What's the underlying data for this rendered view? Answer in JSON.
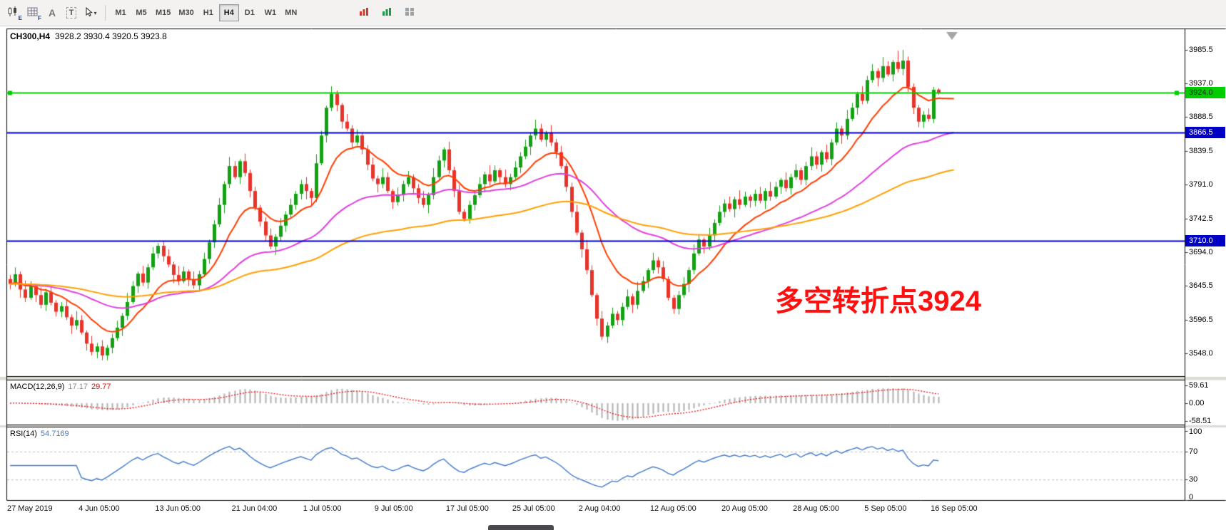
{
  "toolbar": {
    "icon_letters": {
      "e": "E",
      "f": "F",
      "a": "A",
      "t": "T"
    },
    "timeframes": [
      "M1",
      "M5",
      "M15",
      "M30",
      "H1",
      "H4",
      "D1",
      "W1",
      "MN"
    ],
    "active_timeframe": "H4"
  },
  "chart": {
    "symbol_period": "CH300,H4",
    "ohlc": "3928.2 3930.4 3920.5 3923.8"
  },
  "indicators": {
    "macd": {
      "label": "MACD(12,26,9)",
      "value_main": "17.17",
      "value_signal": "29.77",
      "scale_labels": [
        "59.61",
        "0.00",
        "-58.51"
      ],
      "scale_values": [
        59.61,
        0,
        -58.51
      ],
      "histogram_color": "#b6b6b6",
      "signal_color": "#ee1111"
    },
    "rsi": {
      "label": "RSI(14)",
      "value": "54.7169",
      "scale_labels": [
        "100",
        "70",
        "30",
        "0"
      ],
      "scale_values": [
        100,
        70,
        30,
        0
      ],
      "levels": [
        70,
        30
      ],
      "level_color": "#bdbdbd",
      "line_color": "#3f79c9"
    }
  },
  "annotation": {
    "text": "多空转折点3924",
    "color": "#fe1010"
  },
  "chart_data": {
    "type": "candlestick",
    "symbol": "CH300",
    "timeframe": "H4",
    "up_color": "#13a113",
    "down_color": "#e8332a",
    "candles": [
      [
        3655,
        3661,
        3640,
        3648
      ],
      [
        3648,
        3672,
        3644,
        3662
      ],
      [
        3662,
        3666,
        3628,
        3640
      ],
      [
        3640,
        3653,
        3622,
        3628
      ],
      [
        3628,
        3652,
        3625,
        3645
      ],
      [
        3645,
        3648,
        3622,
        3632
      ],
      [
        3632,
        3643,
        3613,
        3618
      ],
      [
        3618,
        3641,
        3609,
        3636
      ],
      [
        3636,
        3645,
        3617,
        3621
      ],
      [
        3621,
        3625,
        3601,
        3608
      ],
      [
        3608,
        3622,
        3600,
        3616
      ],
      [
        3616,
        3626,
        3596,
        3600
      ],
      [
        3600,
        3604,
        3576,
        3588
      ],
      [
        3588,
        3609,
        3582,
        3596
      ],
      [
        3596,
        3603,
        3575,
        3578
      ],
      [
        3578,
        3581,
        3552,
        3562
      ],
      [
        3562,
        3573,
        3545,
        3550
      ],
      [
        3550,
        3563,
        3541,
        3558
      ],
      [
        3558,
        3567,
        3538,
        3545
      ],
      [
        3545,
        3560,
        3538,
        3556
      ],
      [
        3556,
        3576,
        3548,
        3570
      ],
      [
        3570,
        3595,
        3566,
        3585
      ],
      [
        3585,
        3606,
        3573,
        3602
      ],
      [
        3602,
        3635,
        3596,
        3622
      ],
      [
        3622,
        3652,
        3619,
        3645
      ],
      [
        3645,
        3666,
        3635,
        3663
      ],
      [
        3663,
        3674,
        3645,
        3650
      ],
      [
        3650,
        3677,
        3641,
        3672
      ],
      [
        3672,
        3701,
        3668,
        3692
      ],
      [
        3692,
        3707,
        3685,
        3703
      ],
      [
        3703,
        3709,
        3680,
        3688
      ],
      [
        3688,
        3698,
        3672,
        3676
      ],
      [
        3676,
        3680,
        3649,
        3661
      ],
      [
        3661,
        3674,
        3646,
        3652
      ],
      [
        3652,
        3673,
        3649,
        3666
      ],
      [
        3666,
        3669,
        3645,
        3655
      ],
      [
        3655,
        3666,
        3641,
        3646
      ],
      [
        3646,
        3667,
        3637,
        3662
      ],
      [
        3662,
        3693,
        3658,
        3684
      ],
      [
        3684,
        3712,
        3677,
        3708
      ],
      [
        3708,
        3740,
        3700,
        3734
      ],
      [
        3734,
        3772,
        3730,
        3762
      ],
      [
        3762,
        3796,
        3750,
        3792
      ],
      [
        3792,
        3831,
        3786,
        3818
      ],
      [
        3818,
        3825,
        3799,
        3802
      ],
      [
        3802,
        3828,
        3792,
        3825
      ],
      [
        3825,
        3836,
        3803,
        3808
      ],
      [
        3808,
        3813,
        3773,
        3782
      ],
      [
        3782,
        3788,
        3754,
        3758
      ],
      [
        3758,
        3762,
        3731,
        3738
      ],
      [
        3738,
        3744,
        3710,
        3718
      ],
      [
        3718,
        3728,
        3698,
        3702
      ],
      [
        3702,
        3720,
        3690,
        3716
      ],
      [
        3716,
        3743,
        3710,
        3732
      ],
      [
        3732,
        3753,
        3723,
        3748
      ],
      [
        3748,
        3771,
        3744,
        3762
      ],
      [
        3762,
        3782,
        3755,
        3778
      ],
      [
        3778,
        3798,
        3770,
        3792
      ],
      [
        3792,
        3802,
        3770,
        3782
      ],
      [
        3782,
        3786,
        3760,
        3772
      ],
      [
        3772,
        3835,
        3766,
        3822
      ],
      [
        3822,
        3869,
        3819,
        3862
      ],
      [
        3862,
        3905,
        3852,
        3902
      ],
      [
        3902,
        3933,
        3897,
        3922
      ],
      [
        3922,
        3927,
        3897,
        3906
      ],
      [
        3906,
        3909,
        3872,
        3882
      ],
      [
        3882,
        3893,
        3868,
        3872
      ],
      [
        3872,
        3877,
        3843,
        3852
      ],
      [
        3852,
        3871,
        3848,
        3862
      ],
      [
        3862,
        3866,
        3835,
        3842
      ],
      [
        3842,
        3848,
        3812,
        3820
      ],
      [
        3820,
        3830,
        3796,
        3800
      ],
      [
        3800,
        3804,
        3780,
        3792
      ],
      [
        3792,
        3815,
        3786,
        3802
      ],
      [
        3802,
        3809,
        3779,
        3782
      ],
      [
        3782,
        3785,
        3756,
        3766
      ],
      [
        3766,
        3787,
        3761,
        3776
      ],
      [
        3776,
        3797,
        3767,
        3792
      ],
      [
        3792,
        3811,
        3788,
        3802
      ],
      [
        3802,
        3806,
        3779,
        3786
      ],
      [
        3786,
        3792,
        3764,
        3772
      ],
      [
        3772,
        3782,
        3758,
        3762
      ],
      [
        3762,
        3780,
        3750,
        3776
      ],
      [
        3776,
        3815,
        3770,
        3802
      ],
      [
        3802,
        3833,
        3799,
        3826
      ],
      [
        3826,
        3845,
        3816,
        3842
      ],
      [
        3842,
        3853,
        3807,
        3812
      ],
      [
        3812,
        3817,
        3773,
        3782
      ],
      [
        3782,
        3791,
        3748,
        3752
      ],
      [
        3752,
        3756,
        3738,
        3742
      ],
      [
        3742,
        3768,
        3735,
        3762
      ],
      [
        3762,
        3782,
        3754,
        3776
      ],
      [
        3776,
        3802,
        3772,
        3792
      ],
      [
        3792,
        3810,
        3780,
        3806
      ],
      [
        3806,
        3819,
        3790,
        3796
      ],
      [
        3796,
        3819,
        3793,
        3812
      ],
      [
        3812,
        3815,
        3792,
        3802
      ],
      [
        3802,
        3813,
        3787,
        3792
      ],
      [
        3792,
        3807,
        3783,
        3802
      ],
      [
        3802,
        3825,
        3798,
        3816
      ],
      [
        3816,
        3838,
        3808,
        3832
      ],
      [
        3832,
        3856,
        3828,
        3846
      ],
      [
        3846,
        3866,
        3834,
        3862
      ],
      [
        3862,
        3885,
        3856,
        3872
      ],
      [
        3872,
        3879,
        3853,
        3856
      ],
      [
        3856,
        3869,
        3846,
        3866
      ],
      [
        3866,
        3877,
        3847,
        3852
      ],
      [
        3852,
        3857,
        3829,
        3838
      ],
      [
        3838,
        3847,
        3814,
        3818
      ],
      [
        3818,
        3822,
        3781,
        3788
      ],
      [
        3788,
        3794,
        3744,
        3752
      ],
      [
        3752,
        3762,
        3718,
        3722
      ],
      [
        3722,
        3726,
        3686,
        3698
      ],
      [
        3698,
        3711,
        3662,
        3668
      ],
      [
        3668,
        3675,
        3629,
        3632
      ],
      [
        3632,
        3635,
        3588,
        3598
      ],
      [
        3598,
        3609,
        3567,
        3572
      ],
      [
        3572,
        3593,
        3563,
        3588
      ],
      [
        3588,
        3614,
        3584,
        3605
      ],
      [
        3605,
        3609,
        3589,
        3596
      ],
      [
        3596,
        3621,
        3588,
        3615
      ],
      [
        3615,
        3640,
        3611,
        3630
      ],
      [
        3630,
        3634,
        3606,
        3618
      ],
      [
        3618,
        3651,
        3612,
        3638
      ],
      [
        3638,
        3659,
        3635,
        3652
      ],
      [
        3652,
        3671,
        3642,
        3668
      ],
      [
        3668,
        3693,
        3663,
        3682
      ],
      [
        3682,
        3687,
        3663,
        3672
      ],
      [
        3672,
        3681,
        3651,
        3655
      ],
      [
        3655,
        3659,
        3624,
        3628
      ],
      [
        3628,
        3632,
        3605,
        3612
      ],
      [
        3612,
        3638,
        3604,
        3632
      ],
      [
        3632,
        3658,
        3628,
        3648
      ],
      [
        3648,
        3672,
        3636,
        3668
      ],
      [
        3668,
        3705,
        3662,
        3692
      ],
      [
        3692,
        3719,
        3689,
        3712
      ],
      [
        3712,
        3715,
        3692,
        3702
      ],
      [
        3702,
        3729,
        3697,
        3718
      ],
      [
        3718,
        3741,
        3709,
        3736
      ],
      [
        3736,
        3761,
        3732,
        3752
      ],
      [
        3752,
        3770,
        3744,
        3764
      ],
      [
        3764,
        3774,
        3752,
        3756
      ],
      [
        3756,
        3774,
        3744,
        3770
      ],
      [
        3770,
        3783,
        3756,
        3762
      ],
      [
        3762,
        3781,
        3759,
        3774
      ],
      [
        3774,
        3777,
        3758,
        3768
      ],
      [
        3768,
        3784,
        3760,
        3778
      ],
      [
        3778,
        3788,
        3764,
        3768
      ],
      [
        3768,
        3786,
        3756,
        3782
      ],
      [
        3782,
        3795,
        3768,
        3774
      ],
      [
        3774,
        3795,
        3771,
        3788
      ],
      [
        3788,
        3801,
        3778,
        3798
      ],
      [
        3798,
        3809,
        3781,
        3786
      ],
      [
        3786,
        3807,
        3777,
        3802
      ],
      [
        3802,
        3821,
        3798,
        3812
      ],
      [
        3812,
        3816,
        3791,
        3798
      ],
      [
        3798,
        3824,
        3790,
        3818
      ],
      [
        3818,
        3845,
        3812,
        3832
      ],
      [
        3832,
        3839,
        3814,
        3820
      ],
      [
        3820,
        3841,
        3810,
        3838
      ],
      [
        3838,
        3849,
        3823,
        3828
      ],
      [
        3828,
        3857,
        3819,
        3852
      ],
      [
        3852,
        3881,
        3848,
        3872
      ],
      [
        3872,
        3876,
        3850,
        3862
      ],
      [
        3862,
        3899,
        3856,
        3886
      ],
      [
        3886,
        3909,
        3883,
        3902
      ],
      [
        3902,
        3925,
        3892,
        3922
      ],
      [
        3922,
        3933,
        3907,
        3912
      ],
      [
        3912,
        3948,
        3908,
        3942
      ],
      [
        3942,
        3965,
        3938,
        3955
      ],
      [
        3955,
        3959,
        3933,
        3945
      ],
      [
        3945,
        3975,
        3939,
        3962
      ],
      [
        3962,
        3969,
        3947,
        3950
      ],
      [
        3950,
        3971,
        3940,
        3968
      ],
      [
        3968,
        3984,
        3953,
        3958
      ],
      [
        3958,
        3985.5,
        3949,
        3970
      ],
      [
        3970,
        3976,
        3925,
        3932
      ],
      [
        3932,
        3937,
        3893,
        3902
      ],
      [
        3902,
        3906,
        3874,
        3882
      ],
      [
        3882,
        3897,
        3873,
        3892
      ],
      [
        3892,
        3901,
        3882,
        3886
      ],
      [
        3886,
        3932,
        3880,
        3928
      ],
      [
        3928.2,
        3930.4,
        3920.5,
        3923.8
      ]
    ],
    "hlines": [
      {
        "price": 3924.0,
        "label": "3924.0",
        "color": "#00cd00",
        "width": 2,
        "badge_bg": "#00cd00",
        "badge_fg": "#003300",
        "handles": true
      },
      {
        "price": 3866.5,
        "label": "3866.5",
        "color": "#0000c4",
        "width": 2,
        "badge_bg": "#0000c4",
        "badge_fg": "#ffffff",
        "handles": false
      },
      {
        "price": 3710.0,
        "label": "3710.0",
        "color": "#0000c4",
        "width": 2,
        "badge_bg": "#0000c4",
        "badge_fg": "#ffffff",
        "handles": false
      }
    ],
    "moving_averages": [
      {
        "name": "ma-fast",
        "period": 13,
        "color": "#ff3d00",
        "width": 2
      },
      {
        "name": "ma-medium",
        "period": 45,
        "color": "#df3fdf",
        "width": 2
      },
      {
        "name": "ma-slow",
        "period": 100,
        "color": "#ff9f00",
        "width": 2
      }
    ],
    "y_axis": {
      "tick_values": [
        3985.5,
        3937.0,
        3888.5,
        3839.5,
        3791.0,
        3742.5,
        3694.0,
        3645.5,
        3596.5,
        3548.0
      ],
      "tick_labels": [
        "3985.5",
        "3937.0",
        "3888.5",
        "3839.5",
        "3791.0",
        "3742.5",
        "3694.0",
        "3645.5",
        "3596.5",
        "3548.0"
      ]
    },
    "x_axis": {
      "labels": [
        {
          "text": "27 May 2019",
          "candle": 0
        },
        {
          "text": "4 Jun 05:00",
          "candle": 14
        },
        {
          "text": "13 Jun 05:00",
          "candle": 29
        },
        {
          "text": "21 Jun 04:00",
          "candle": 44
        },
        {
          "text": "1 Jul 05:00",
          "candle": 58
        },
        {
          "text": "9 Jul 05:00",
          "candle": 72
        },
        {
          "text": "17 Jul 05:00",
          "candle": 86
        },
        {
          "text": "25 Jul 05:00",
          "candle": 99
        },
        {
          "text": "2 Aug 04:00",
          "candle": 112
        },
        {
          "text": "12 Aug 05:00",
          "candle": 126
        },
        {
          "text": "20 Aug 05:00",
          "candle": 140
        },
        {
          "text": "28 Aug 05:00",
          "candle": 154
        },
        {
          "text": "5 Sep 05:00",
          "candle": 168
        },
        {
          "text": "16 Sep 05:00",
          "candle": 181
        }
      ]
    },
    "macd_params": {
      "fast": 12,
      "slow": 26,
      "signal": 9
    },
    "rsi_params": {
      "period": 14
    }
  }
}
